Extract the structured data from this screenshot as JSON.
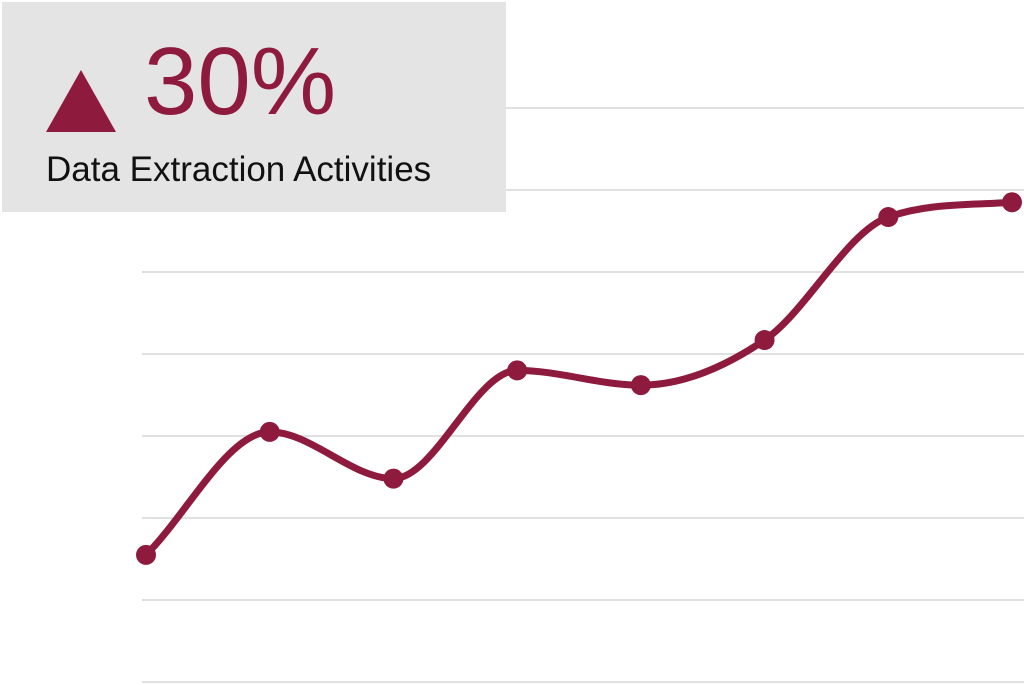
{
  "stat": {
    "icon": "up-triangle-icon",
    "value": "30%",
    "label": "Data Extraction Activities"
  },
  "colors": {
    "accent": "#8e1b3e",
    "card_bg": "#e4e4e4",
    "grid": "#e0e0e0",
    "label_text": "#111111"
  },
  "chart_data": {
    "type": "line",
    "title": "",
    "xlabel": "",
    "ylabel": "",
    "x": [
      1,
      2,
      3,
      4,
      5,
      6,
      7,
      8
    ],
    "series": [
      {
        "values": [
          1.55,
          3.05,
          2.48,
          3.8,
          3.62,
          4.17,
          5.67,
          5.85
        ]
      }
    ],
    "ylim": [
      0,
      7
    ],
    "grid": true,
    "smooth": true,
    "markers": true
  }
}
